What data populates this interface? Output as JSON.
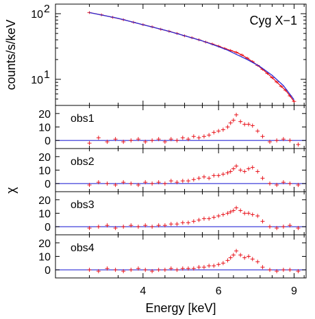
{
  "chart_data": [
    {
      "type": "line",
      "panel": "spectrum",
      "title": "Cyg X−1",
      "ylabel": "counts/s/keV",
      "xlabel": "",
      "yscale": "log",
      "ylim": [
        4,
        140
      ],
      "xlim": [
        2.5,
        9.6
      ],
      "xscale": "log",
      "yticks": [
        {
          "value": 10,
          "label": "10",
          "exp": "1"
        },
        {
          "value": 100,
          "label": "10",
          "exp": "2"
        }
      ],
      "series": [
        {
          "role": "data",
          "color": "#e8141c",
          "x": [
            3.0,
            3.2,
            3.4,
            3.6,
            3.8,
            4.0,
            4.2,
            4.4,
            4.6,
            4.8,
            5.0,
            5.2,
            5.4,
            5.6,
            5.8,
            6.0,
            6.2,
            6.4,
            6.6,
            6.8,
            7.0,
            7.2,
            7.4,
            7.6,
            7.8,
            8.0,
            8.2,
            8.4,
            8.6,
            8.8,
            9.0
          ],
          "y": [
            104,
            96,
            88,
            81,
            74,
            68,
            63,
            58,
            54,
            50,
            46,
            43,
            40,
            37,
            34.5,
            32,
            29.5,
            27.5,
            25.8,
            23.5,
            21,
            18.6,
            16.3,
            14.2,
            12.3,
            10.6,
            9.1,
            7.8,
            6.8,
            5.6,
            4.6
          ]
        },
        {
          "role": "model",
          "color": "#2a2ad6",
          "x": [
            3.0,
            3.5,
            4.0,
            4.5,
            5.0,
            5.5,
            6.0,
            6.3,
            6.6,
            7.0,
            7.5,
            8.0,
            8.5,
            9.0
          ],
          "y": [
            104,
            85,
            68,
            56,
            46,
            38.5,
            31.5,
            27.8,
            24,
            20,
            15.6,
            11.5,
            8.0,
            4.9
          ]
        }
      ]
    },
    {
      "type": "scatter",
      "panel": "residuals",
      "label": "obs1",
      "ylim": [
        -6,
        26
      ],
      "xlim": [
        2.5,
        9.6
      ],
      "yticks": [
        0,
        10,
        20
      ],
      "baseline": 0,
      "x": [
        3.0,
        3.15,
        3.3,
        3.45,
        3.6,
        3.75,
        3.9,
        4.05,
        4.2,
        4.35,
        4.5,
        4.65,
        4.8,
        4.95,
        5.1,
        5.25,
        5.4,
        5.55,
        5.7,
        5.85,
        6.0,
        6.15,
        6.3,
        6.4,
        6.5,
        6.6,
        6.75,
        6.9,
        7.05,
        7.2,
        7.4,
        7.6,
        7.9,
        8.2,
        8.5,
        8.8,
        9.2
      ],
      "y": [
        -2,
        2,
        -1,
        1,
        -1,
        0,
        1,
        -1,
        0,
        1,
        -1,
        1,
        0,
        2,
        1,
        3,
        2,
        3,
        4,
        6,
        7,
        8,
        10,
        13,
        15,
        19,
        14,
        12,
        12,
        11,
        7,
        3,
        -1,
        0,
        1,
        0,
        -3
      ]
    },
    {
      "type": "scatter",
      "panel": "residuals",
      "label": "obs2",
      "ylim": [
        -6,
        26
      ],
      "xlim": [
        2.5,
        9.6
      ],
      "yticks": [
        0,
        10,
        20
      ],
      "baseline": 0,
      "x": [
        3.0,
        3.15,
        3.3,
        3.45,
        3.6,
        3.75,
        3.9,
        4.05,
        4.2,
        4.35,
        4.5,
        4.65,
        4.8,
        4.95,
        5.1,
        5.25,
        5.4,
        5.55,
        5.7,
        5.85,
        6.0,
        6.15,
        6.3,
        6.4,
        6.5,
        6.6,
        6.75,
        6.9,
        7.05,
        7.2,
        7.4,
        7.6,
        7.9,
        8.2,
        8.5,
        8.8,
        9.2
      ],
      "y": [
        -1,
        1,
        0,
        -1,
        1,
        0,
        -1,
        1,
        0,
        1,
        0,
        2,
        1,
        2,
        2,
        3,
        4,
        5,
        4,
        6,
        6,
        7,
        8,
        9,
        11,
        13,
        10,
        9,
        11,
        12,
        9,
        4,
        0,
        -1,
        1,
        0,
        -1
      ]
    },
    {
      "type": "scatter",
      "panel": "residuals",
      "label": "obs3",
      "ylim": [
        -6,
        26
      ],
      "xlim": [
        2.5,
        9.6
      ],
      "yticks": [
        0,
        10,
        20
      ],
      "baseline": 0,
      "x": [
        3.0,
        3.15,
        3.3,
        3.45,
        3.6,
        3.75,
        3.9,
        4.05,
        4.2,
        4.35,
        4.5,
        4.65,
        4.8,
        4.95,
        5.1,
        5.25,
        5.4,
        5.55,
        5.7,
        5.85,
        6.0,
        6.15,
        6.3,
        6.4,
        6.5,
        6.6,
        6.75,
        6.9,
        7.05,
        7.2,
        7.4,
        7.6,
        7.9,
        8.2,
        8.5,
        8.8,
        9.2
      ],
      "y": [
        -1,
        0,
        1,
        -1,
        0,
        1,
        0,
        1,
        0,
        1,
        1,
        2,
        2,
        3,
        3,
        4,
        5,
        6,
        6,
        7,
        8,
        9,
        10,
        11,
        12,
        14,
        12,
        10,
        10,
        9,
        8,
        4,
        0,
        -1,
        0,
        1,
        -1
      ]
    },
    {
      "type": "scatter",
      "panel": "residuals",
      "label": "obs4",
      "ylim": [
        -6,
        26
      ],
      "xlim": [
        2.5,
        9.6
      ],
      "yticks": [
        0,
        10,
        20
      ],
      "baseline": 0,
      "x": [
        3.0,
        3.15,
        3.3,
        3.45,
        3.6,
        3.75,
        3.9,
        4.05,
        4.2,
        4.35,
        4.5,
        4.65,
        4.8,
        4.95,
        5.1,
        5.25,
        5.4,
        5.55,
        5.7,
        5.85,
        6.0,
        6.15,
        6.3,
        6.4,
        6.5,
        6.6,
        6.75,
        6.9,
        7.05,
        7.2,
        7.4,
        7.6,
        7.9,
        8.2,
        8.5,
        8.8,
        9.2
      ],
      "y": [
        0,
        -1,
        1,
        0,
        -1,
        0,
        1,
        0,
        -1,
        0,
        0,
        1,
        0,
        1,
        1,
        1,
        2,
        2,
        3,
        3,
        4,
        5,
        7,
        9,
        11,
        14,
        11,
        9,
        10,
        8,
        6,
        2,
        0,
        -1,
        0,
        0,
        -1
      ]
    }
  ],
  "shared": {
    "xlabel": "Energy [keV]",
    "residual_ylabel": "χ",
    "xticks": [
      4,
      6,
      9
    ],
    "data_color": "#e8141c",
    "model_color": "#2a2ad6"
  }
}
